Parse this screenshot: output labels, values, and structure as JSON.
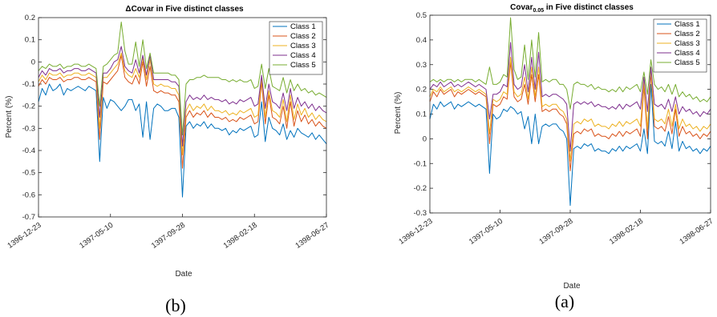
{
  "colors": {
    "class1": "#0072BD",
    "class2": "#D95319",
    "class3": "#EDB120",
    "class4": "#7E2F8E",
    "class5": "#77AC30",
    "axes": "#262626",
    "background": "#ffffff"
  },
  "chart_data": [
    {
      "type": "line",
      "panel": "left",
      "caption": "(b)",
      "title": "ΔCovar in Five distinct classes",
      "title_sub": "",
      "title_rest": "",
      "xlabel": "Date",
      "ylabel": "Percent (%)",
      "ylim": [
        -0.7,
        0.2
      ],
      "yticks": [
        "-0.7",
        "-0.6",
        "-0.5",
        "-0.4",
        "-0.3",
        "-0.2",
        "-0.1",
        "0",
        "0.1",
        "0.2"
      ],
      "xticks": [
        "1396-12-23",
        "1397-05-10",
        "1397-09-28",
        "1398-02-18",
        "1398-06-27"
      ],
      "xtick_index": [
        0,
        20,
        40,
        60,
        80
      ],
      "grid": false,
      "legend_position": "top-right",
      "series": [
        {
          "name": "Class 1",
          "values": [
            -0.18,
            -0.12,
            -0.15,
            -0.1,
            -0.13,
            -0.12,
            -0.1,
            -0.15,
            -0.12,
            -0.13,
            -0.12,
            -0.11,
            -0.12,
            -0.13,
            -0.11,
            -0.12,
            -0.13,
            -0.45,
            -0.16,
            -0.21,
            -0.17,
            -0.18,
            -0.2,
            -0.22,
            -0.2,
            -0.17,
            -0.17,
            -0.22,
            -0.19,
            -0.34,
            -0.18,
            -0.35,
            -0.21,
            -0.19,
            -0.2,
            -0.22,
            -0.22,
            -0.21,
            -0.21,
            -0.25,
            -0.61,
            -0.29,
            -0.27,
            -0.3,
            -0.28,
            -0.29,
            -0.27,
            -0.3,
            -0.28,
            -0.3,
            -0.3,
            -0.31,
            -0.3,
            -0.33,
            -0.31,
            -0.32,
            -0.3,
            -0.31,
            -0.3,
            -0.29,
            -0.34,
            -0.33,
            -0.18,
            -0.36,
            -0.25,
            -0.3,
            -0.31,
            -0.33,
            -0.28,
            -0.35,
            -0.31,
            -0.34,
            -0.3,
            -0.32,
            -0.33,
            -0.34,
            -0.32,
            -0.35,
            -0.33,
            -0.35,
            -0.37
          ]
        },
        {
          "name": "Class 2",
          "values": [
            -0.11,
            -0.08,
            -0.1,
            -0.07,
            -0.08,
            -0.08,
            -0.07,
            -0.09,
            -0.08,
            -0.08,
            -0.07,
            -0.07,
            -0.08,
            -0.08,
            -0.07,
            -0.08,
            -0.09,
            -0.35,
            -0.09,
            -0.1,
            -0.08,
            -0.06,
            -0.04,
            0.03,
            -0.07,
            -0.09,
            -0.1,
            -0.06,
            -0.1,
            0.0,
            -0.11,
            -0.02,
            -0.13,
            -0.14,
            -0.13,
            -0.14,
            -0.14,
            -0.15,
            -0.15,
            -0.18,
            -0.48,
            -0.25,
            -0.22,
            -0.25,
            -0.23,
            -0.24,
            -0.22,
            -0.25,
            -0.23,
            -0.25,
            -0.25,
            -0.26,
            -0.25,
            -0.27,
            -0.26,
            -0.27,
            -0.25,
            -0.26,
            -0.25,
            -0.24,
            -0.28,
            -0.27,
            -0.09,
            -0.28,
            -0.15,
            -0.25,
            -0.26,
            -0.28,
            -0.2,
            -0.3,
            -0.18,
            -0.29,
            -0.22,
            -0.27,
            -0.24,
            -0.28,
            -0.26,
            -0.29,
            -0.27,
            -0.29,
            -0.3
          ]
        },
        {
          "name": "Class 3",
          "values": [
            -0.09,
            -0.06,
            -0.08,
            -0.05,
            -0.06,
            -0.06,
            -0.05,
            -0.07,
            -0.06,
            -0.06,
            -0.05,
            -0.05,
            -0.06,
            -0.06,
            -0.05,
            -0.06,
            -0.07,
            -0.3,
            -0.07,
            -0.07,
            -0.05,
            -0.03,
            -0.01,
            0.04,
            -0.04,
            -0.06,
            -0.07,
            -0.03,
            -0.07,
            0.02,
            -0.08,
            0.01,
            -0.1,
            -0.11,
            -0.1,
            -0.11,
            -0.11,
            -0.12,
            -0.12,
            -0.15,
            -0.42,
            -0.22,
            -0.19,
            -0.22,
            -0.2,
            -0.21,
            -0.19,
            -0.22,
            -0.2,
            -0.22,
            -0.22,
            -0.23,
            -0.22,
            -0.24,
            -0.23,
            -0.24,
            -0.22,
            -0.23,
            -0.22,
            -0.21,
            -0.25,
            -0.24,
            -0.07,
            -0.25,
            -0.13,
            -0.22,
            -0.23,
            -0.25,
            -0.17,
            -0.27,
            -0.15,
            -0.26,
            -0.19,
            -0.24,
            -0.21,
            -0.25,
            -0.23,
            -0.26,
            -0.24,
            -0.26,
            -0.27
          ]
        },
        {
          "name": "Class 4",
          "values": [
            -0.07,
            -0.04,
            -0.06,
            -0.03,
            -0.04,
            -0.04,
            -0.03,
            -0.05,
            -0.04,
            -0.04,
            -0.03,
            -0.03,
            -0.04,
            -0.04,
            -0.03,
            -0.04,
            -0.05,
            -0.25,
            -0.05,
            -0.05,
            -0.03,
            0.0,
            0.01,
            0.07,
            -0.02,
            -0.04,
            -0.05,
            0.01,
            -0.05,
            0.03,
            -0.06,
            0.03,
            -0.08,
            -0.08,
            -0.08,
            -0.08,
            -0.08,
            -0.09,
            -0.09,
            -0.11,
            -0.38,
            -0.18,
            -0.15,
            -0.17,
            -0.16,
            -0.17,
            -0.15,
            -0.17,
            -0.16,
            -0.17,
            -0.17,
            -0.18,
            -0.17,
            -0.19,
            -0.18,
            -0.19,
            -0.17,
            -0.18,
            -0.17,
            -0.16,
            -0.2,
            -0.19,
            -0.06,
            -0.21,
            -0.1,
            -0.18,
            -0.19,
            -0.21,
            -0.14,
            -0.22,
            -0.12,
            -0.21,
            -0.16,
            -0.2,
            -0.18,
            -0.21,
            -0.19,
            -0.22,
            -0.2,
            -0.22,
            -0.23
          ]
        },
        {
          "name": "Class 5",
          "values": [
            -0.04,
            -0.02,
            -0.03,
            -0.01,
            -0.02,
            -0.02,
            -0.01,
            -0.03,
            -0.02,
            -0.02,
            -0.01,
            -0.01,
            -0.02,
            -0.02,
            -0.01,
            -0.02,
            -0.03,
            -0.2,
            -0.02,
            -0.01,
            0.01,
            0.03,
            0.04,
            0.18,
            0.05,
            -0.01,
            -0.01,
            0.09,
            -0.02,
            0.1,
            -0.03,
            0.04,
            -0.05,
            -0.05,
            -0.05,
            -0.05,
            -0.05,
            -0.06,
            -0.06,
            -0.08,
            -0.33,
            -0.1,
            -0.08,
            -0.08,
            -0.07,
            -0.07,
            -0.06,
            -0.07,
            -0.07,
            -0.07,
            -0.07,
            -0.08,
            -0.08,
            -0.09,
            -0.08,
            -0.09,
            -0.08,
            -0.09,
            -0.09,
            -0.08,
            -0.12,
            -0.11,
            -0.01,
            -0.12,
            -0.03,
            -0.11,
            -0.12,
            -0.13,
            -0.07,
            -0.14,
            -0.08,
            -0.13,
            -0.1,
            -0.13,
            -0.12,
            -0.14,
            -0.13,
            -0.15,
            -0.14,
            -0.15,
            -0.16
          ]
        }
      ]
    },
    {
      "type": "line",
      "panel": "right",
      "caption": "(a)",
      "title": "Covar",
      "title_sub": "0.05",
      "title_rest": " in Five distinct classes",
      "xlabel": "Date",
      "ylabel": "Percent (%)",
      "ylim": [
        -0.3,
        0.5
      ],
      "yticks": [
        "-0.3",
        "-0.2",
        "-0.1",
        "0",
        "0.1",
        "0.2",
        "0.3",
        "0.4",
        "0.5"
      ],
      "xticks": [
        "1396-12-23",
        "1397-05-10",
        "1397-09-28",
        "1398-02-18",
        "1398-06-27"
      ],
      "xtick_index": [
        0,
        20,
        40,
        60,
        80
      ],
      "grid": false,
      "legend_position": "top-right",
      "series": [
        {
          "name": "Class 1",
          "values": [
            0.08,
            0.14,
            0.12,
            0.15,
            0.13,
            0.14,
            0.15,
            0.12,
            0.14,
            0.13,
            0.14,
            0.15,
            0.14,
            0.13,
            0.14,
            0.13,
            0.12,
            -0.14,
            0.1,
            0.08,
            0.09,
            0.12,
            0.11,
            0.13,
            0.12,
            0.1,
            0.11,
            0.04,
            0.09,
            -0.02,
            0.1,
            -0.02,
            0.05,
            0.06,
            0.05,
            0.06,
            0.06,
            0.04,
            0.03,
            0.0,
            -0.27,
            -0.04,
            -0.03,
            -0.04,
            -0.02,
            -0.03,
            -0.02,
            -0.05,
            -0.04,
            -0.05,
            -0.05,
            -0.06,
            -0.04,
            -0.05,
            -0.03,
            -0.05,
            -0.03,
            -0.04,
            -0.03,
            -0.02,
            -0.05,
            0.04,
            -0.06,
            0.22,
            -0.01,
            -0.02,
            -0.01,
            -0.03,
            0.03,
            -0.04,
            0.07,
            -0.05,
            -0.01,
            -0.04,
            -0.03,
            -0.05,
            -0.04,
            -0.06,
            -0.04,
            -0.05,
            -0.03
          ]
        },
        {
          "name": "Class 2",
          "values": [
            0.15,
            0.19,
            0.17,
            0.2,
            0.18,
            0.19,
            0.2,
            0.17,
            0.19,
            0.18,
            0.19,
            0.2,
            0.19,
            0.18,
            0.19,
            0.18,
            0.17,
            -0.02,
            0.14,
            0.13,
            0.14,
            0.17,
            0.16,
            0.31,
            0.17,
            0.15,
            0.16,
            0.22,
            0.14,
            0.26,
            0.15,
            0.26,
            0.11,
            0.12,
            0.11,
            0.12,
            0.12,
            0.1,
            0.09,
            0.06,
            -0.13,
            0.02,
            0.03,
            0.02,
            0.04,
            0.03,
            0.04,
            0.01,
            0.02,
            0.01,
            0.01,
            0.0,
            0.02,
            0.01,
            0.03,
            0.01,
            0.03,
            0.02,
            0.03,
            0.04,
            0.01,
            0.21,
            0.0,
            0.27,
            0.05,
            0.04,
            0.05,
            0.03,
            0.09,
            0.02,
            0.12,
            0.01,
            0.05,
            0.02,
            0.03,
            0.01,
            0.02,
            0.0,
            0.02,
            0.01,
            0.03
          ]
        },
        {
          "name": "Class 3",
          "values": [
            0.17,
            0.2,
            0.19,
            0.21,
            0.19,
            0.2,
            0.21,
            0.19,
            0.2,
            0.19,
            0.2,
            0.21,
            0.2,
            0.19,
            0.2,
            0.19,
            0.18,
            0.02,
            0.16,
            0.15,
            0.16,
            0.19,
            0.18,
            0.33,
            0.19,
            0.17,
            0.18,
            0.25,
            0.16,
            0.29,
            0.17,
            0.29,
            0.13,
            0.14,
            0.13,
            0.14,
            0.14,
            0.12,
            0.11,
            0.08,
            -0.09,
            0.06,
            0.07,
            0.06,
            0.08,
            0.07,
            0.08,
            0.05,
            0.06,
            0.05,
            0.05,
            0.04,
            0.06,
            0.05,
            0.07,
            0.05,
            0.07,
            0.06,
            0.07,
            0.08,
            0.05,
            0.23,
            0.04,
            0.28,
            0.08,
            0.07,
            0.08,
            0.06,
            0.12,
            0.05,
            0.14,
            0.04,
            0.08,
            0.05,
            0.06,
            0.04,
            0.05,
            0.03,
            0.05,
            0.04,
            0.06
          ]
        },
        {
          "name": "Class 4",
          "values": [
            0.2,
            0.22,
            0.21,
            0.23,
            0.21,
            0.22,
            0.23,
            0.21,
            0.22,
            0.21,
            0.22,
            0.23,
            0.22,
            0.21,
            0.22,
            0.21,
            0.2,
            0.08,
            0.18,
            0.18,
            0.19,
            0.22,
            0.21,
            0.39,
            0.22,
            0.2,
            0.21,
            0.3,
            0.19,
            0.33,
            0.2,
            0.35,
            0.17,
            0.18,
            0.17,
            0.18,
            0.18,
            0.17,
            0.16,
            0.14,
            -0.05,
            0.14,
            0.15,
            0.14,
            0.15,
            0.14,
            0.15,
            0.13,
            0.14,
            0.13,
            0.13,
            0.12,
            0.13,
            0.12,
            0.14,
            0.12,
            0.14,
            0.13,
            0.14,
            0.15,
            0.12,
            0.25,
            0.11,
            0.29,
            0.14,
            0.13,
            0.14,
            0.12,
            0.16,
            0.11,
            0.17,
            0.1,
            0.13,
            0.11,
            0.12,
            0.1,
            0.11,
            0.09,
            0.11,
            0.1,
            0.12
          ]
        },
        {
          "name": "Class 5",
          "values": [
            0.23,
            0.24,
            0.23,
            0.24,
            0.23,
            0.24,
            0.24,
            0.23,
            0.24,
            0.23,
            0.24,
            0.24,
            0.24,
            0.23,
            0.24,
            0.23,
            0.22,
            0.29,
            0.22,
            0.22,
            0.23,
            0.26,
            0.25,
            0.49,
            0.28,
            0.24,
            0.25,
            0.38,
            0.24,
            0.4,
            0.25,
            0.43,
            0.23,
            0.24,
            0.23,
            0.24,
            0.24,
            0.22,
            0.22,
            0.2,
            0.12,
            0.22,
            0.23,
            0.22,
            0.22,
            0.21,
            0.22,
            0.2,
            0.21,
            0.2,
            0.2,
            0.19,
            0.2,
            0.19,
            0.21,
            0.19,
            0.21,
            0.2,
            0.21,
            0.22,
            0.19,
            0.27,
            0.18,
            0.32,
            0.22,
            0.2,
            0.21,
            0.19,
            0.22,
            0.18,
            0.22,
            0.17,
            0.19,
            0.17,
            0.18,
            0.16,
            0.17,
            0.15,
            0.16,
            0.15,
            0.17
          ]
        }
      ]
    }
  ]
}
